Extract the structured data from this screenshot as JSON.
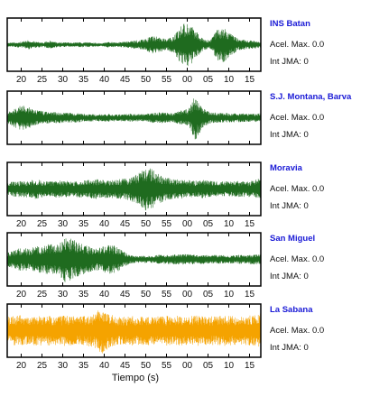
{
  "chart_data": {
    "type": "line",
    "xlabel": "Tiempo (s)",
    "tick_labels": [
      "20",
      "25",
      "30",
      "35",
      "40",
      "45",
      "50",
      "55",
      "00",
      "05",
      "10",
      "15"
    ],
    "panels": [
      {
        "station": "INS Batan",
        "acel_label": "Acel. Max. 0.0",
        "jma_label": "Int JMA: 0",
        "color": "#1f6b1f",
        "tick_labels_below": true,
        "envelope": [
          0.08,
          0.1,
          0.12,
          0.18,
          0.12,
          0.1,
          0.16,
          0.1,
          0.09,
          0.08,
          0.1,
          0.1,
          0.08,
          0.06,
          0.12,
          0.08,
          0.12,
          0.14,
          0.18,
          0.22,
          0.36,
          0.3,
          0.22,
          0.34,
          0.78,
          0.92,
          0.55,
          0.25,
          0.16,
          0.62,
          0.7,
          0.4,
          0.22,
          0.18,
          0.16,
          0.12
        ]
      },
      {
        "station": "S.J. Montana, Barva",
        "acel_label": "Acel. Max. 0.0",
        "jma_label": "Int JMA: 0",
        "color": "#1f6b1f",
        "tick_labels_below": false,
        "envelope": [
          0.2,
          0.38,
          0.5,
          0.42,
          0.3,
          0.26,
          0.22,
          0.22,
          0.2,
          0.2,
          0.18,
          0.16,
          0.14,
          0.14,
          0.16,
          0.14,
          0.14,
          0.16,
          0.14,
          0.14,
          0.2,
          0.22,
          0.2,
          0.18,
          0.3,
          0.34,
          0.9,
          0.4,
          0.24,
          0.2,
          0.2,
          0.18,
          0.18,
          0.16,
          0.16,
          0.18
        ]
      },
      {
        "station": "Moravia",
        "acel_label": "Acel. Max. 0.0",
        "jma_label": "Int JMA: 0",
        "color": "#1f6b1f",
        "tick_labels_below": true,
        "envelope": [
          0.26,
          0.3,
          0.32,
          0.34,
          0.4,
          0.32,
          0.3,
          0.34,
          0.34,
          0.3,
          0.34,
          0.36,
          0.4,
          0.38,
          0.36,
          0.38,
          0.4,
          0.46,
          0.62,
          0.86,
          0.8,
          0.58,
          0.46,
          0.4,
          0.38,
          0.36,
          0.34,
          0.36,
          0.32,
          0.3,
          0.3,
          0.3,
          0.32,
          0.3,
          0.34,
          0.44
        ]
      },
      {
        "station": "San Miguel",
        "acel_label": "Acel. Max. 0.0",
        "jma_label": "Int JMA: 0",
        "color": "#1f6b1f",
        "tick_labels_below": true,
        "envelope": [
          0.28,
          0.36,
          0.48,
          0.42,
          0.52,
          0.58,
          0.62,
          0.6,
          0.92,
          0.8,
          0.7,
          0.54,
          0.46,
          0.48,
          0.58,
          0.54,
          0.34,
          0.16,
          0.14,
          0.14,
          0.14,
          0.18,
          0.18,
          0.2,
          0.2,
          0.22,
          0.18,
          0.18,
          0.16,
          0.18,
          0.16,
          0.16,
          0.18,
          0.16,
          0.2,
          0.2
        ]
      },
      {
        "station": "La Sabana",
        "acel_label": "Acel. Max. 0.0",
        "jma_label": "Int JMA: 0",
        "color": "#f5a300",
        "tick_labels_below": true,
        "envelope": [
          0.55,
          0.58,
          0.62,
          0.55,
          0.6,
          0.58,
          0.6,
          0.56,
          0.62,
          0.58,
          0.55,
          0.62,
          0.65,
          0.94,
          0.7,
          0.58,
          0.55,
          0.6,
          0.56,
          0.58,
          0.62,
          0.56,
          0.6,
          0.58,
          0.6,
          0.56,
          0.62,
          0.58,
          0.56,
          0.6,
          0.62,
          0.58,
          0.56,
          0.6,
          0.62,
          0.7
        ]
      }
    ]
  }
}
